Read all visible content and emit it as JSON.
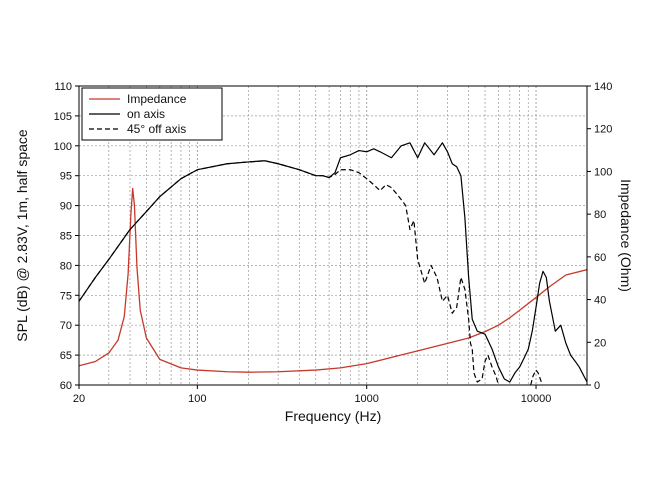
{
  "chart_data": {
    "type": "line",
    "xlabel": "Frequency (Hz)",
    "ylabel_left": "SPL (dB) @ 2.83V, 1m, half space",
    "ylabel_right": "Impedance (Ohm)",
    "x_scale": "log",
    "xlim": [
      20,
      20000
    ],
    "ylim_left": [
      60,
      110
    ],
    "ylim_right": [
      0,
      140
    ],
    "x_tick_labels": [
      "20",
      "100",
      "1000",
      "10000"
    ],
    "y_left_ticks": [
      "60",
      "65",
      "70",
      "75",
      "80",
      "85",
      "90",
      "95",
      "100",
      "105",
      "110"
    ],
    "y_right_ticks": [
      "0",
      "20",
      "40",
      "60",
      "80",
      "100",
      "120",
      "140"
    ],
    "grid": true,
    "legend_position": "top-left",
    "colors": {
      "impedance": "#c8382a",
      "axis": "#000000",
      "grid": "#9a9a9a"
    },
    "series": [
      {
        "name": "Impedance",
        "axis": "right",
        "color": "#c8382a",
        "style": "solid",
        "x": [
          20,
          25,
          30,
          34,
          37,
          39,
          40.5,
          41.5,
          42.5,
          44,
          46,
          50,
          60,
          80,
          100,
          150,
          200,
          300,
          500,
          700,
          1000,
          1500,
          2000,
          3000,
          4000,
          5000,
          6000,
          7000,
          8000,
          10000,
          12000,
          15000,
          20000
        ],
        "y": [
          9,
          11,
          15,
          21,
          32,
          52,
          80,
          92,
          84,
          55,
          35,
          22,
          12,
          8,
          7,
          6.2,
          6,
          6.2,
          7,
          8,
          10,
          13.5,
          16,
          19.5,
          22,
          25,
          28,
          31.5,
          35,
          41,
          46,
          51.5,
          54
        ]
      },
      {
        "name": "on axis",
        "axis": "left",
        "color": "#000000",
        "style": "solid",
        "x": [
          20,
          25,
          30,
          40,
          50,
          60,
          80,
          100,
          150,
          200,
          250,
          300,
          400,
          500,
          550,
          600,
          650,
          700,
          800,
          900,
          1000,
          1100,
          1200,
          1400,
          1600,
          1800,
          2000,
          2200,
          2500,
          2800,
          3000,
          3200,
          3400,
          3600,
          3800,
          4000,
          4200,
          4500,
          5000,
          5500,
          6000,
          6500,
          7000,
          7500,
          8000,
          8500,
          9000,
          9500,
          10000,
          10500,
          11000,
          11500,
          12000,
          13000,
          14000,
          15000,
          16000,
          17000,
          18000,
          20000
        ],
        "y": [
          74,
          78,
          81,
          86,
          89,
          91.5,
          94.5,
          96,
          97,
          97.3,
          97.5,
          97,
          96,
          95,
          95,
          94.7,
          95.5,
          98,
          98.5,
          99.2,
          99,
          99.5,
          99,
          98,
          100,
          100.5,
          98,
          100.5,
          98.5,
          100.5,
          99,
          97,
          96.5,
          95,
          88,
          78,
          71,
          69,
          68.5,
          66,
          63,
          61,
          60.5,
          62,
          63,
          64.5,
          66,
          69,
          73,
          77,
          79,
          78,
          74,
          69,
          70,
          67,
          65,
          64,
          63,
          60.5
        ]
      },
      {
        "name": "45° off axis",
        "axis": "left",
        "color": "#000000",
        "style": "dashed",
        "x": [
          20,
          25,
          30,
          40,
          50,
          60,
          80,
          100,
          150,
          200,
          250,
          300,
          400,
          500,
          550,
          600,
          650,
          700,
          800,
          900,
          1000,
          1100,
          1200,
          1300,
          1400,
          1500,
          1600,
          1700,
          1800,
          1900,
          2000,
          2200,
          2400,
          2600,
          2800,
          3000,
          3200,
          3400,
          3600,
          3800,
          4000,
          4100,
          4200,
          4300,
          4500,
          4800,
          5000,
          5200,
          5500,
          5800,
          6000
        ],
        "y": [
          74,
          78,
          81,
          86,
          89,
          91.5,
          94.5,
          96,
          97,
          97.3,
          97.5,
          97,
          96,
          95,
          95,
          94.7,
          95.2,
          96,
          96,
          95.5,
          94.5,
          93.5,
          92.5,
          93.5,
          93,
          92,
          91,
          90,
          86,
          87.5,
          81,
          77,
          80,
          78,
          74,
          75,
          72,
          73,
          78,
          76,
          71,
          67,
          66,
          62,
          60.5,
          61,
          64,
          65,
          63,
          61.5,
          60
        ]
      },
      {
        "name": "45° off axis",
        "axis": "left",
        "color": "#000000",
        "style": "dashed",
        "x": [
          9300,
          9600,
          10000,
          10300,
          10600,
          10900
        ],
        "y": [
          60,
          61.5,
          62.5,
          62,
          61,
          60
        ]
      }
    ],
    "legend_entries": [
      {
        "label": "Impedance",
        "color": "#c8382a",
        "style": "solid"
      },
      {
        "label": "on axis",
        "color": "#000000",
        "style": "solid"
      },
      {
        "label": "45° off axis",
        "color": "#000000",
        "style": "dashed"
      }
    ]
  }
}
